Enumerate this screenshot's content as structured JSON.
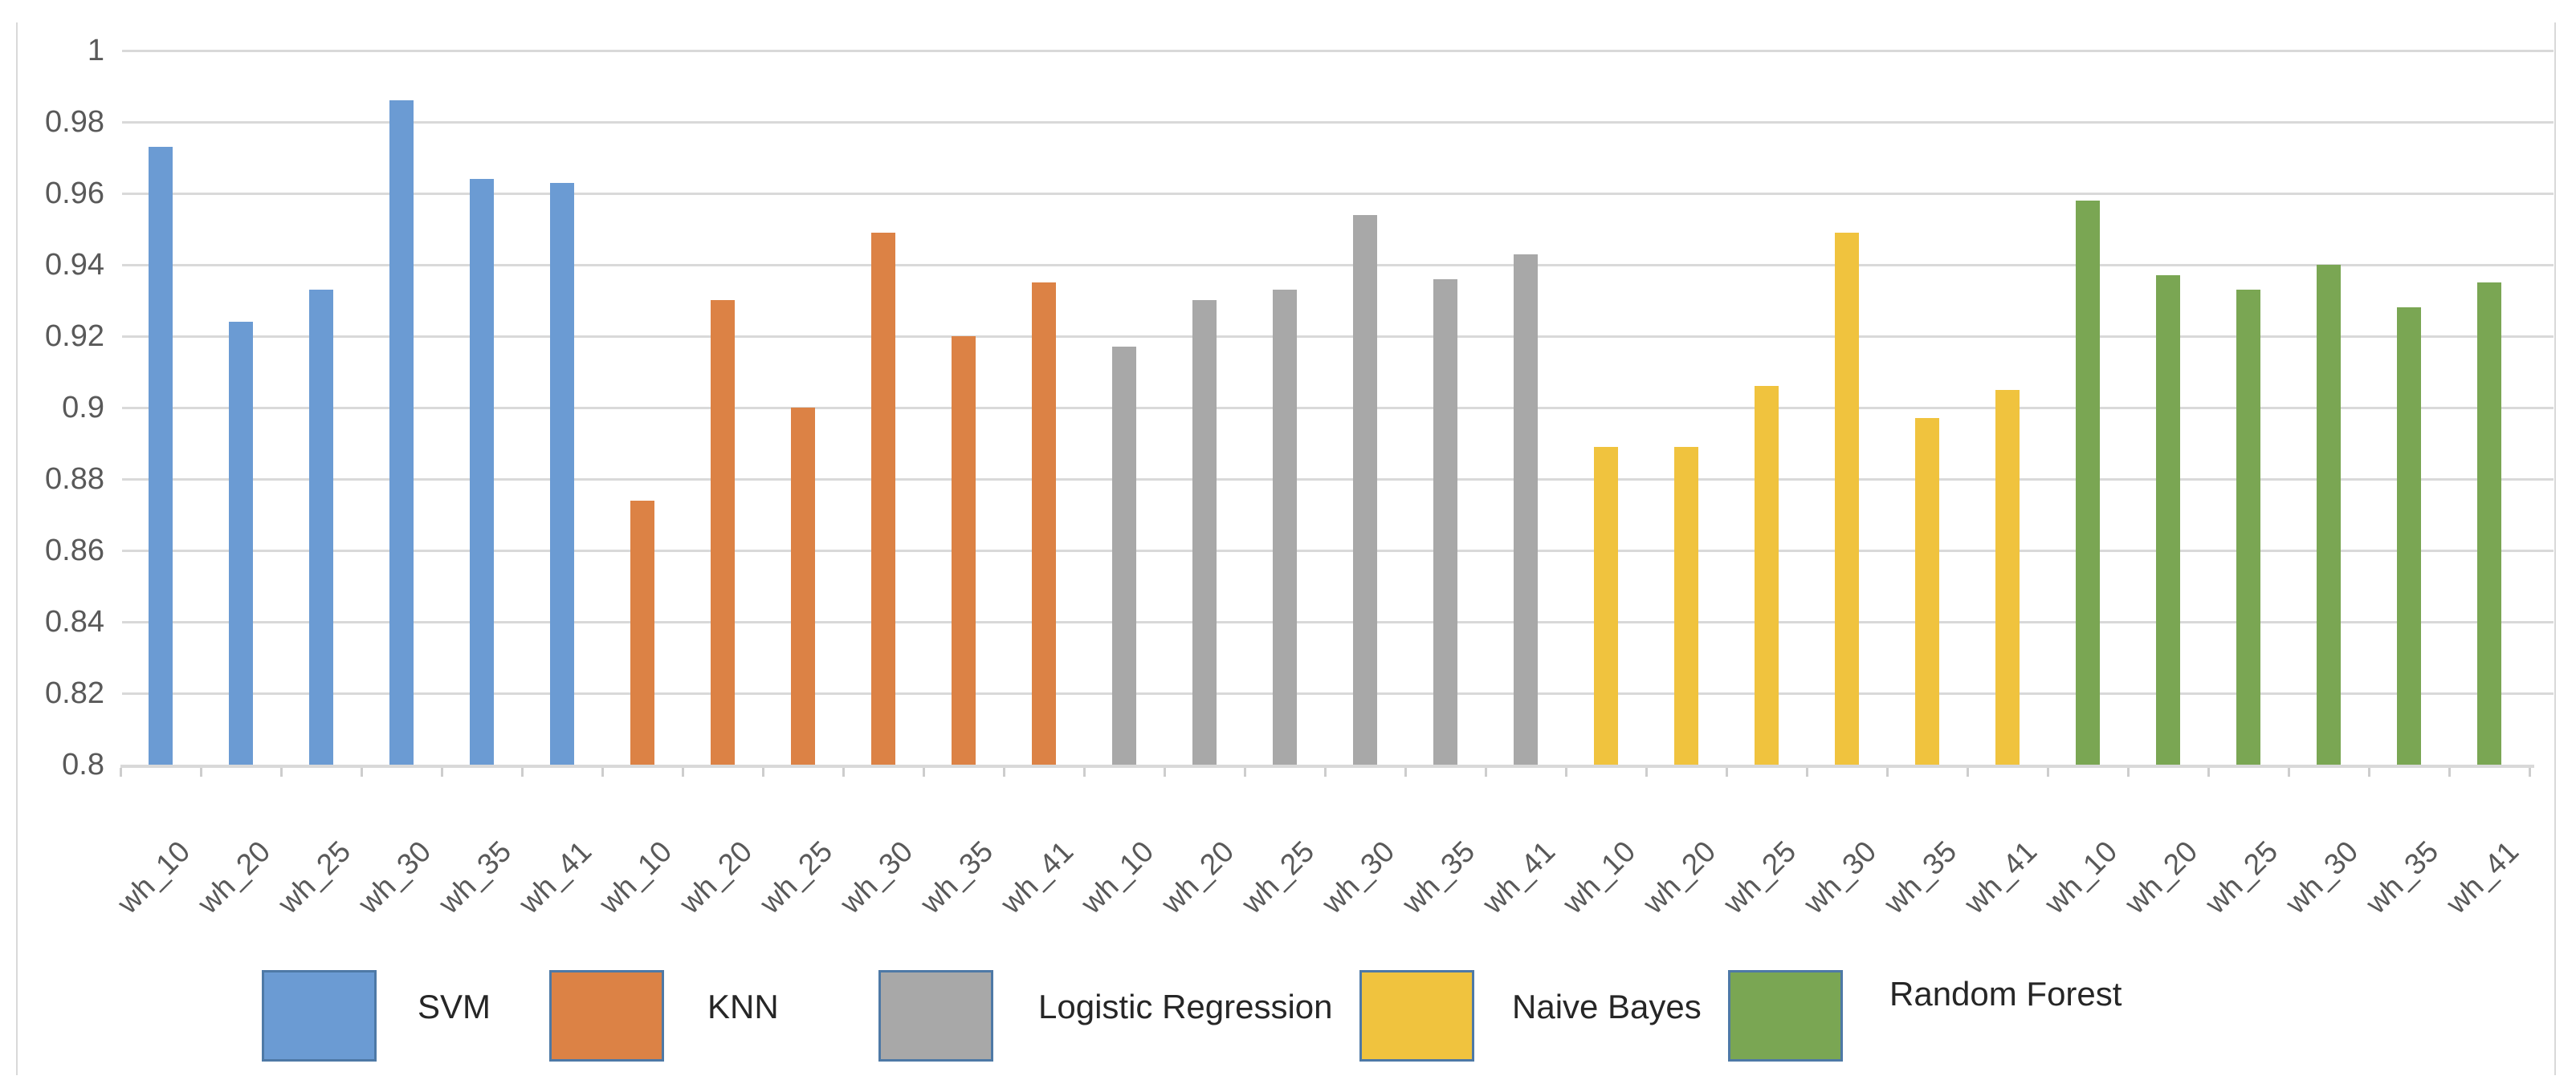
{
  "chart_data": {
    "type": "bar",
    "title": "",
    "xlabel": "",
    "ylabel": "",
    "categories": [
      "wh_10",
      "wh_20",
      "wh_25",
      "wh_30",
      "wh_35",
      "wh_41"
    ],
    "series": [
      {
        "name": "SVM",
        "color": "#6B9BD3",
        "values": [
          0.973,
          0.924,
          0.933,
          0.986,
          0.964,
          0.963
        ]
      },
      {
        "name": "KNN",
        "color": "#DC8245",
        "values": [
          0.874,
          0.93,
          0.9,
          0.949,
          0.92,
          0.935
        ]
      },
      {
        "name": "Logistic Regression",
        "color": "#A8A8A8",
        "values": [
          0.917,
          0.93,
          0.933,
          0.954,
          0.936,
          0.943
        ]
      },
      {
        "name": "Naive Bayes",
        "color": "#F0C33E",
        "values": [
          0.889,
          0.889,
          0.906,
          0.949,
          0.897,
          0.905
        ]
      },
      {
        "name": "Random Forest",
        "color": "#7AA653",
        "values": [
          0.958,
          0.937,
          0.933,
          0.94,
          0.928,
          0.935
        ]
      }
    ],
    "ylim": [
      0.8,
      1
    ],
    "ytick_step": 0.02,
    "ytick_labels": [
      "1",
      "0.98",
      "0.96",
      "0.94",
      "0.92",
      "0.9",
      "0.88",
      "0.86",
      "0.84",
      "0.82",
      "0.8"
    ],
    "grid": true,
    "legend_position": "bottom"
  },
  "legend": {
    "items": [
      {
        "label": "SVM",
        "color": "#6B9BD3"
      },
      {
        "label": "KNN",
        "color": "#DC8245"
      },
      {
        "label": "Logistic Regression",
        "color": "#A8A8A8"
      },
      {
        "label": "Naive Bayes",
        "color": "#F0C33E"
      },
      {
        "label": "Random Forest",
        "color": "#7AA653"
      }
    ]
  },
  "colors": {
    "background": "#FFFFFF",
    "grid": "#D9D9D9",
    "axis": "#D9D9D9",
    "tick": "#CDCDCD",
    "axis_label_text": "#595959",
    "legend_text": "#262626",
    "swatch_border": "#4E79A6",
    "frame_border": "#D9D9D9"
  }
}
